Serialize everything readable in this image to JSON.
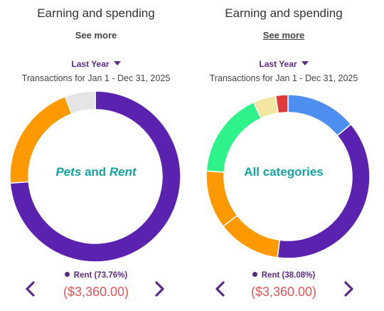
{
  "panels": [
    {
      "title": "Earning and spending",
      "see_more": "See more",
      "period": "Last Year",
      "range": "Transactions for Jan 1 - Dec 31, 2025",
      "center": {
        "part1": "Pets",
        "part2": " and ",
        "part3": "Rent"
      },
      "legend": "Rent (73.76%)",
      "amount": "($3,360.00)",
      "colors": {
        "accent": "#5b2a86",
        "center_text": "#14a3a3",
        "amount": "#e05555"
      },
      "chart_data": {
        "type": "pie",
        "slices": [
          {
            "label": "Rent",
            "value": 73.76,
            "color": "#5b22b0"
          },
          {
            "label": "Pets",
            "value": 20.5,
            "color": "#ff9900"
          },
          {
            "label": "Other",
            "value": 5.74,
            "color": "#e5e5e5"
          }
        ]
      }
    },
    {
      "title": "Earning and spending",
      "see_more": "See more",
      "period": "Last Year",
      "range": "Transactions for Jan 1 - Dec 31, 2025",
      "center": {
        "part1": "",
        "part2": "All categories",
        "part3": ""
      },
      "legend": "Rent (38.08%)",
      "amount": "($3,360.00)",
      "colors": {
        "accent": "#5b2a86",
        "center_text": "#14a3a3",
        "amount": "#e05555"
      },
      "chart_data": {
        "type": "pie",
        "slices": [
          {
            "value": 14.0,
            "color": "#4d8ff0"
          },
          {
            "label": "Rent",
            "value": 38.08,
            "color": "#5b22b0"
          },
          {
            "value": 12.5,
            "color": "#ff9900"
          },
          {
            "value": 11.5,
            "color": "#ff9900"
          },
          {
            "value": 17.0,
            "color": "#2ef28a"
          },
          {
            "value": 4.5,
            "color": "#f2e6a0"
          },
          {
            "value": 2.42,
            "color": "#e03a3a"
          }
        ]
      }
    }
  ],
  "icons": {
    "prev": "chevron-left-icon",
    "next": "chevron-right-icon",
    "dropdown": "caret-down-icon"
  }
}
